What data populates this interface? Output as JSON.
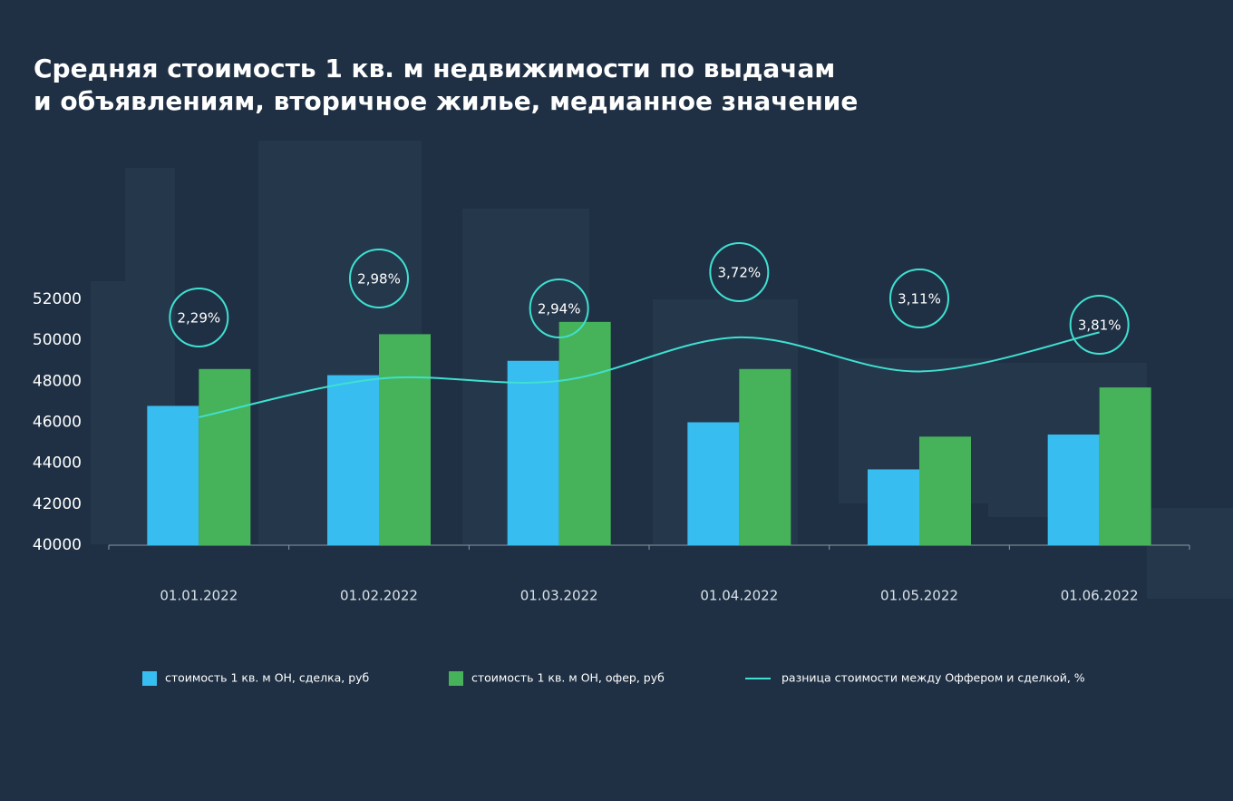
{
  "chart_data": {
    "type": "bar",
    "title": [
      "Средняя стоимость 1 кв. м недвижимости по выдачам",
      "и объявлениям, вторичное жилье, медианное значение"
    ],
    "categories": [
      "01.01.2022",
      "01.02.2022",
      "01.03.2022",
      "01.04.2022",
      "01.05.2022",
      "01.06.2022"
    ],
    "series": [
      {
        "name": "стоимость 1 кв. м ОН, сделка, руб",
        "type": "bar",
        "color": "#38bdf0",
        "values": [
          46800,
          48300,
          49000,
          46000,
          43700,
          45400
        ]
      },
      {
        "name": "стоимость 1 кв. м ОН, офер, руб",
        "type": "bar",
        "color": "#46b35a",
        "values": [
          48600,
          50300,
          50900,
          48600,
          45300,
          47700
        ]
      },
      {
        "name": "разница стоимости между Оффером и сделкой, %",
        "type": "line",
        "axis": "y2",
        "color": "#3fe0d0",
        "values": [
          2.29,
          2.98,
          2.94,
          3.72,
          3.11,
          3.81
        ],
        "value_labels": [
          "2,29%",
          "2,98%",
          "2,94%",
          "3,72%",
          "3,11%",
          "3,81%"
        ]
      }
    ],
    "ylim": [
      40000,
      52000
    ],
    "yticks": [
      40000,
      42000,
      44000,
      46000,
      48000,
      50000,
      52000
    ],
    "y2lim": [
      0,
      4.4
    ],
    "grid": false
  }
}
